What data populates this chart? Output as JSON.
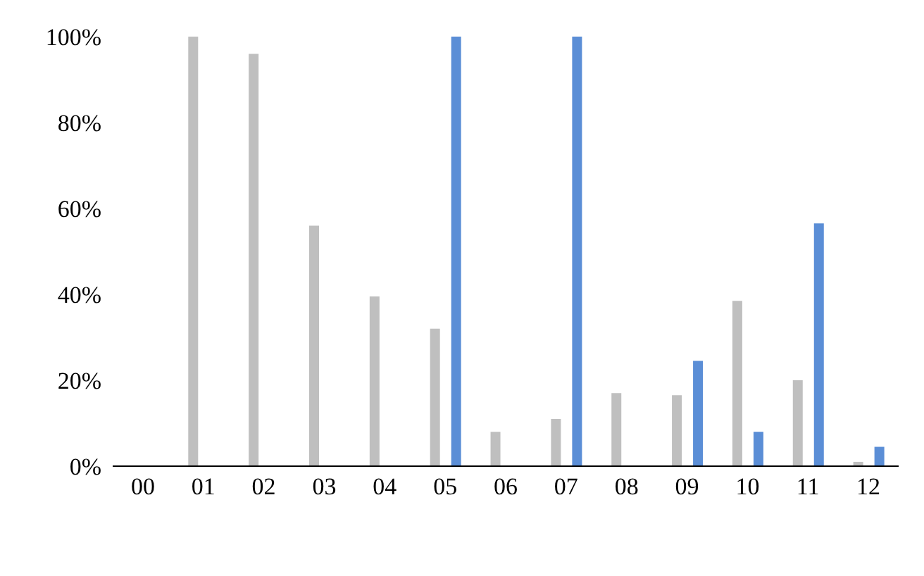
{
  "chart_data": {
    "type": "bar",
    "categories": [
      "00",
      "01",
      "02",
      "03",
      "04",
      "05",
      "06",
      "07",
      "08",
      "09",
      "10",
      "11",
      "12"
    ],
    "series": [
      {
        "color": "#bfbfbf",
        "values": [
          null,
          100,
          96,
          56,
          39.5,
          32,
          8,
          11,
          17,
          16.5,
          38.5,
          20,
          1
        ]
      },
      {
        "color": "#5b8ed6",
        "values": [
          null,
          null,
          null,
          null,
          null,
          100,
          null,
          100,
          null,
          24.5,
          8,
          56.5,
          4.5
        ]
      }
    ],
    "ylim": [
      0,
      100
    ],
    "yticks": [
      {
        "value": 0,
        "label": "0%"
      },
      {
        "value": 20,
        "label": "20%"
      },
      {
        "value": 40,
        "label": "40%"
      },
      {
        "value": 60,
        "label": "60%"
      },
      {
        "value": 80,
        "label": "80%"
      },
      {
        "value": 100,
        "label": "100%"
      }
    ],
    "grid": false,
    "legend": false
  }
}
